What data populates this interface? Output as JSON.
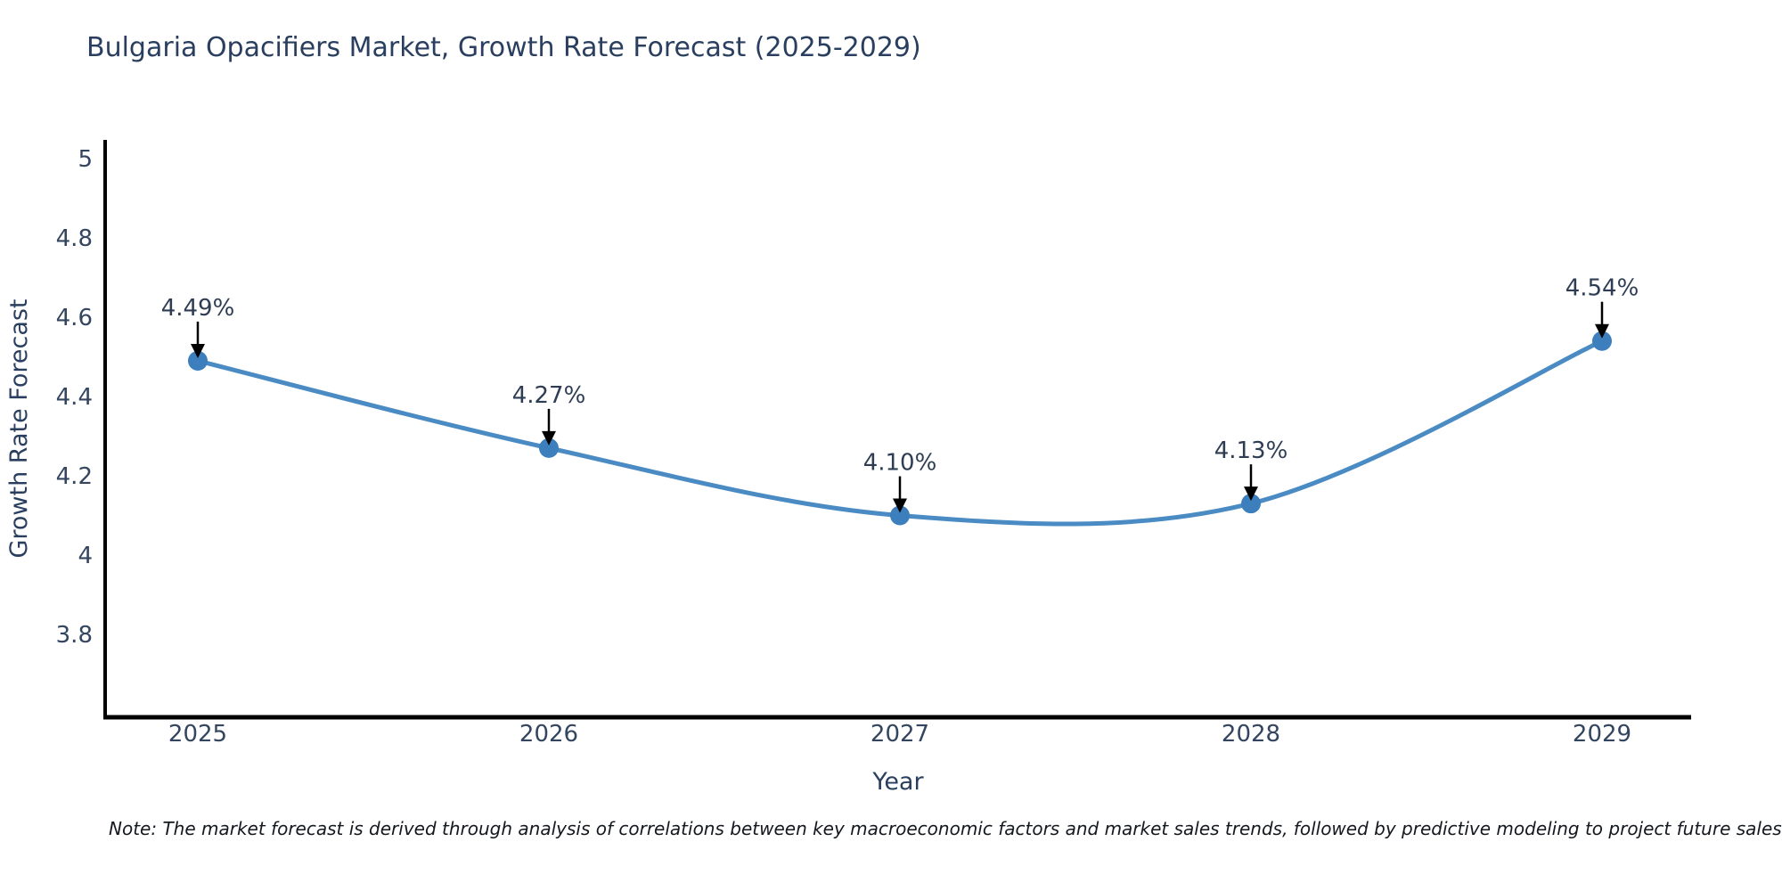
{
  "title": "Bulgaria Opacifiers Market, Growth Rate Forecast (2025-2029)",
  "note": "Note: The market forecast is derived through analysis of correlations between key macroeconomic factors and market sales trends, followed by predictive modeling to project future sales",
  "chart_data": {
    "type": "line",
    "title": "Bulgaria Opacifiers Market, Growth Rate Forecast (2025-2029)",
    "xlabel": "Year",
    "ylabel": "Growth Rate Forecast",
    "x": [
      2025,
      2026,
      2027,
      2028,
      2029
    ],
    "values": [
      4.49,
      4.27,
      4.1,
      4.13,
      4.54
    ],
    "point_labels": [
      "4.49%",
      "4.27%",
      "4.10%",
      "4.13%",
      "4.54%"
    ],
    "x_tick_labels": [
      "2025",
      "2026",
      "2027",
      "2028",
      "2029"
    ],
    "yticks": [
      5,
      4.8,
      4.6,
      4.4,
      4.2,
      4,
      3.8
    ],
    "ytick_labels": [
      "5",
      "4.8",
      "4.6",
      "4.4",
      "4.2",
      "4",
      "3.8"
    ],
    "ylim": [
      3.6,
      5.05
    ],
    "grid": false,
    "legend_position": "none",
    "line_color": "#4a8bc4",
    "marker_color": "#3d7ebd",
    "axis_color": "#000000",
    "arrow_color": "#000000",
    "text_color": "#2a3f5f"
  }
}
